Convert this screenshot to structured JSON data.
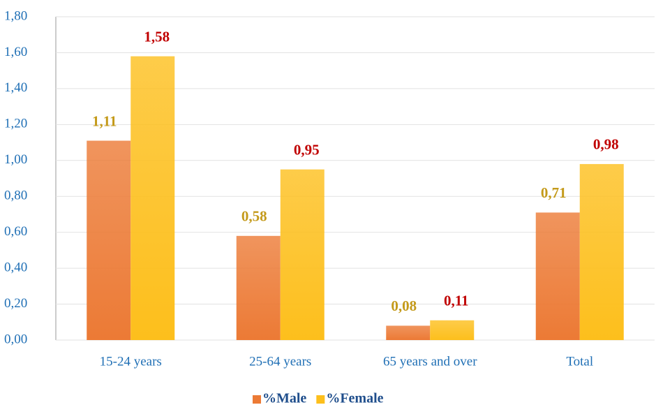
{
  "chart_data": {
    "type": "bar",
    "categories": [
      "15-24 years",
      "25-64 years",
      "65 years and over",
      "Total"
    ],
    "series": [
      {
        "name": "%Male",
        "color": "#ec7a35",
        "label_color": "#c49a1a",
        "values": [
          1.11,
          0.58,
          0.08,
          0.71
        ],
        "value_labels": [
          "1,11",
          "0,58",
          "0,08",
          "0,71"
        ]
      },
      {
        "name": "%Female",
        "color": "#fdbf1c",
        "label_color": "#c00000",
        "values": [
          1.58,
          0.95,
          0.11,
          0.98
        ],
        "value_labels": [
          "1,58",
          "0,95",
          "0,11",
          "0,98"
        ]
      }
    ],
    "ylim": [
      0,
      1.8
    ],
    "yticks": [
      {
        "value": 0,
        "label": "0,00"
      },
      {
        "value": 0.2,
        "label": "0,20"
      },
      {
        "value": 0.4,
        "label": "0,40"
      },
      {
        "value": 0.6,
        "label": "0,60"
      },
      {
        "value": 0.8,
        "label": "0,80"
      },
      {
        "value": 1.0,
        "label": "1,00"
      },
      {
        "value": 1.2,
        "label": "1,20"
      },
      {
        "value": 1.4,
        "label": "1,40"
      },
      {
        "value": 1.6,
        "label": "1,60"
      },
      {
        "value": 1.8,
        "label": "1,80"
      }
    ],
    "grid": true,
    "legend": "bottom"
  }
}
